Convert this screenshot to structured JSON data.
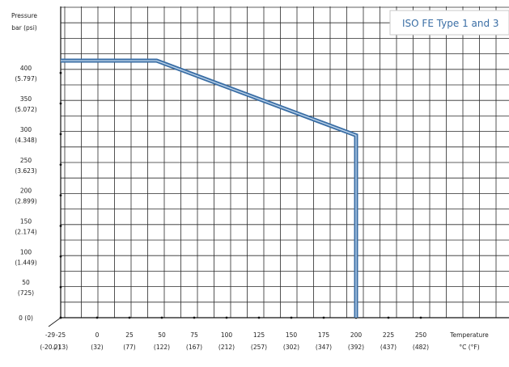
{
  "chart_data": {
    "type": "line",
    "y_axis_title": [
      "Pressure",
      "bar (psi)"
    ],
    "x_axis_title": [
      "Temperature",
      "°C (°F)"
    ],
    "y_ticks": [
      {
        "value": 400,
        "line1": "400",
        "line2": "(5.797)"
      },
      {
        "value": 350,
        "line1": "350",
        "line2": "(5.072)"
      },
      {
        "value": 300,
        "line1": "300",
        "line2": "(4.348)"
      },
      {
        "value": 250,
        "line1": "250",
        "line2": "(3.623)"
      },
      {
        "value": 200,
        "line1": "200",
        "line2": "(2.899)"
      },
      {
        "value": 150,
        "line1": "150",
        "line2": "(2.174)"
      },
      {
        "value": 100,
        "line1": "100",
        "line2": "(1.449)"
      },
      {
        "value": 50,
        "line1": "50",
        "line2": "(725)"
      },
      {
        "value": 0,
        "line1": "0 (0)",
        "line2": ""
      }
    ],
    "x_ticks": [
      {
        "value": -29,
        "line1": "-29",
        "line2": "(-20.2)"
      },
      {
        "value": -25,
        "line1": "-25",
        "line2": "(-13)"
      },
      {
        "value": 0,
        "line1": "0",
        "line2": "(32)"
      },
      {
        "value": 25,
        "line1": "25",
        "line2": "(77)"
      },
      {
        "value": 50,
        "line1": "50",
        "line2": "(122)"
      },
      {
        "value": 75,
        "line1": "75",
        "line2": "(167)"
      },
      {
        "value": 100,
        "line1": "100",
        "line2": "(212)"
      },
      {
        "value": 125,
        "line1": "125",
        "line2": "(257)"
      },
      {
        "value": 150,
        "line1": "150",
        "line2": "(302)"
      },
      {
        "value": 175,
        "line1": "175",
        "line2": "(347)"
      },
      {
        "value": 200,
        "line1": "200",
        "line2": "(392)"
      },
      {
        "value": 225,
        "line1": "225",
        "line2": "(437)"
      },
      {
        "value": 250,
        "line1": "250",
        "line2": "(482)"
      }
    ],
    "xlim": [
      -29,
      250
    ],
    "ylim": [
      0,
      420
    ],
    "grid": true,
    "legend": {
      "label": "ISO FE Type 1 and 3",
      "position": "top-right"
    },
    "series": [
      {
        "name": "ISO FE Type 1 and 3",
        "color": "#3a6ea5",
        "points": [
          [
            -29,
            420
          ],
          [
            46,
            420
          ],
          [
            200,
            298
          ],
          [
            200,
            0
          ]
        ]
      }
    ]
  }
}
